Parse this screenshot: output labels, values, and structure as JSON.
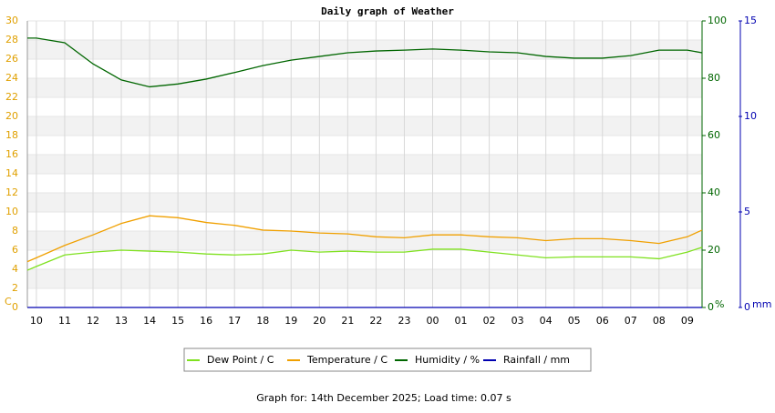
{
  "chart_data": {
    "type": "line",
    "title": "Daily graph of Weather",
    "footer": "Graph for: 14th December 2025; Load time: 0.07 s",
    "y_label": "C",
    "y2_label": "%",
    "y3_label": "mm",
    "x": [
      -0.32,
      0,
      1,
      2,
      3,
      4,
      5,
      6,
      7,
      8,
      9,
      10,
      11,
      12,
      13,
      14,
      15,
      16,
      17,
      18,
      19,
      20,
      21,
      22,
      23,
      23.52
    ],
    "xlim": [
      -0.32,
      23.52
    ],
    "xticks": [
      {
        "value": 0,
        "label": "10"
      },
      {
        "value": 1,
        "label": "11"
      },
      {
        "value": 2,
        "label": "12"
      },
      {
        "value": 3,
        "label": "13"
      },
      {
        "value": 4,
        "label": "14"
      },
      {
        "value": 5,
        "label": "15"
      },
      {
        "value": 6,
        "label": "16"
      },
      {
        "value": 7,
        "label": "17"
      },
      {
        "value": 8,
        "label": "18"
      },
      {
        "value": 9,
        "label": "19"
      },
      {
        "value": 10,
        "label": "20"
      },
      {
        "value": 11,
        "label": "21"
      },
      {
        "value": 12,
        "label": "22"
      },
      {
        "value": 13,
        "label": "23"
      },
      {
        "value": 14,
        "label": "00"
      },
      {
        "value": 15,
        "label": "01"
      },
      {
        "value": 16,
        "label": "02"
      },
      {
        "value": 17,
        "label": "03"
      },
      {
        "value": 18,
        "label": "04"
      },
      {
        "value": 19,
        "label": "05"
      },
      {
        "value": 20,
        "label": "06"
      },
      {
        "value": 21,
        "label": "07"
      },
      {
        "value": 22,
        "label": "08"
      },
      {
        "value": 23,
        "label": "09"
      }
    ],
    "ylim": [
      0,
      30
    ],
    "yticks": [
      0,
      2,
      4,
      6,
      8,
      10,
      12,
      14,
      16,
      18,
      20,
      22,
      24,
      26,
      28,
      30
    ],
    "y2lim": [
      0,
      100
    ],
    "y2ticks": [
      0,
      20,
      40,
      60,
      80,
      100
    ],
    "y3lim": [
      0,
      15
    ],
    "y3ticks": [
      0,
      5,
      10,
      15
    ],
    "series": [
      {
        "name": "Dew Point / C",
        "color": "#7fe11f",
        "values": [
          3.9,
          4.3,
          5.5,
          5.8,
          6.0,
          5.9,
          5.8,
          5.6,
          5.5,
          5.6,
          6.0,
          5.8,
          5.9,
          5.8,
          5.8,
          6.1,
          6.1,
          5.8,
          5.5,
          5.2,
          5.3,
          5.3,
          5.3,
          5.1,
          5.8,
          6.3
        ]
      },
      {
        "name": "Temperature / C",
        "color": "#f0a000",
        "values": [
          4.8,
          5.2,
          6.5,
          7.6,
          8.8,
          9.6,
          9.4,
          8.9,
          8.6,
          8.1,
          8.0,
          7.8,
          7.7,
          7.4,
          7.3,
          7.6,
          7.6,
          7.4,
          7.3,
          7.0,
          7.2,
          7.2,
          7.0,
          6.7,
          7.4,
          8.1
        ]
      },
      {
        "name": "Humidity / %",
        "color": "#006600",
        "axis": "y2",
        "values": [
          94,
          94,
          92.4,
          85,
          79.4,
          77,
          78,
          79.7,
          82,
          84.4,
          86.3,
          87.6,
          88.9,
          89.5,
          89.8,
          90.2,
          89.8,
          89.2,
          88.9,
          87.6,
          87,
          87,
          87.9,
          89.8,
          89.8,
          88.9
        ]
      },
      {
        "name": "Rainfall / mm",
        "color": "#0000b0",
        "axis": "y3",
        "values": [
          0,
          0,
          0,
          0,
          0,
          0,
          0,
          0,
          0,
          0,
          0,
          0,
          0,
          0,
          0,
          0,
          0,
          0,
          0,
          0,
          0,
          0,
          0,
          0,
          0,
          0
        ]
      }
    ]
  }
}
